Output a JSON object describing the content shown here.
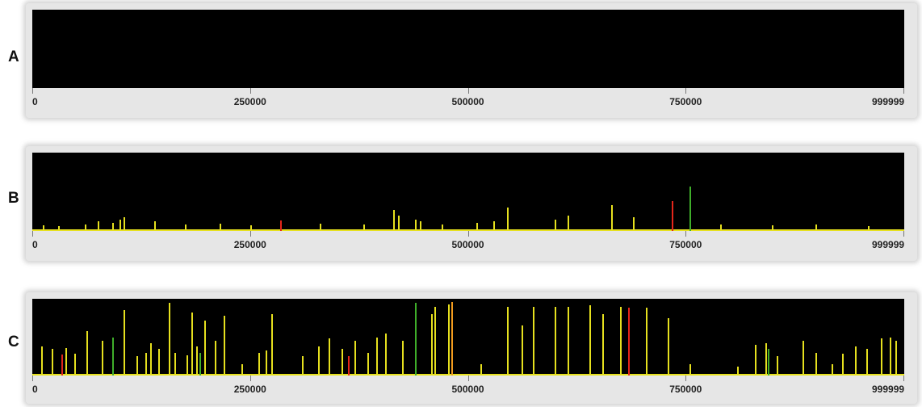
{
  "chart_data": [
    {
      "type": "bar",
      "panel_label": "A",
      "x_ticks": [
        "0",
        "250000",
        "500000",
        "750000",
        "999999"
      ],
      "xlim": [
        0,
        999999
      ],
      "ylim": [
        0,
        100
      ],
      "colors": {
        "background": "#000000",
        "low": "#e6e01e",
        "mid": "#f29b1e",
        "high": "#e5261a",
        "green": "#3fae2a"
      },
      "spikes": []
    },
    {
      "type": "bar",
      "panel_label": "B",
      "x_ticks": [
        "0",
        "250000",
        "500000",
        "750000",
        "999999"
      ],
      "xlim": [
        0,
        999999
      ],
      "ylim": [
        0,
        100
      ],
      "colors": {
        "background": "#000000",
        "low": "#e6e01e",
        "mid": "#f29b1e",
        "high": "#e5261a",
        "green": "#3fae2a"
      },
      "spikes": [
        {
          "x": 12000,
          "y": 7,
          "c": "low"
        },
        {
          "x": 30000,
          "y": 6,
          "c": "low"
        },
        {
          "x": 60000,
          "y": 8,
          "c": "low"
        },
        {
          "x": 75000,
          "y": 12,
          "c": "low"
        },
        {
          "x": 92000,
          "y": 10,
          "c": "low"
        },
        {
          "x": 100000,
          "y": 14,
          "c": "low"
        },
        {
          "x": 105000,
          "y": 18,
          "c": "low"
        },
        {
          "x": 140000,
          "y": 12,
          "c": "low"
        },
        {
          "x": 175000,
          "y": 8,
          "c": "low"
        },
        {
          "x": 215000,
          "y": 9,
          "c": "low"
        },
        {
          "x": 250000,
          "y": 7,
          "c": "low"
        },
        {
          "x": 285000,
          "y": 13,
          "c": "high"
        },
        {
          "x": 330000,
          "y": 9,
          "c": "low"
        },
        {
          "x": 380000,
          "y": 8,
          "c": "low"
        },
        {
          "x": 415000,
          "y": 27,
          "c": "low"
        },
        {
          "x": 420000,
          "y": 20,
          "c": "low"
        },
        {
          "x": 440000,
          "y": 14,
          "c": "low"
        },
        {
          "x": 445000,
          "y": 12,
          "c": "low"
        },
        {
          "x": 470000,
          "y": 8,
          "c": "low"
        },
        {
          "x": 510000,
          "y": 10,
          "c": "low"
        },
        {
          "x": 530000,
          "y": 12,
          "c": "low"
        },
        {
          "x": 545000,
          "y": 30,
          "c": "low"
        },
        {
          "x": 600000,
          "y": 14,
          "c": "low"
        },
        {
          "x": 615000,
          "y": 20,
          "c": "low"
        },
        {
          "x": 665000,
          "y": 33,
          "c": "low"
        },
        {
          "x": 690000,
          "y": 18,
          "c": "low"
        },
        {
          "x": 735000,
          "y": 38,
          "c": "high"
        },
        {
          "x": 755000,
          "y": 57,
          "c": "green"
        },
        {
          "x": 790000,
          "y": 8,
          "c": "low"
        },
        {
          "x": 850000,
          "y": 7,
          "c": "low"
        },
        {
          "x": 900000,
          "y": 8,
          "c": "low"
        },
        {
          "x": 960000,
          "y": 6,
          "c": "low"
        }
      ]
    },
    {
      "type": "bar",
      "panel_label": "C",
      "x_ticks": [
        "0",
        "250000",
        "500000",
        "750000",
        "999999"
      ],
      "xlim": [
        0,
        999999
      ],
      "ylim": [
        0,
        100
      ],
      "colors": {
        "background": "#000000",
        "low": "#e6e01e",
        "mid": "#f29b1e",
        "high": "#e5261a",
        "green": "#3fae2a"
      },
      "spikes": [
        {
          "x": 10000,
          "y": 38,
          "c": "low"
        },
        {
          "x": 22000,
          "y": 35,
          "c": "low"
        },
        {
          "x": 33000,
          "y": 27,
          "c": "high"
        },
        {
          "x": 38000,
          "y": 36,
          "c": "low"
        },
        {
          "x": 48000,
          "y": 28,
          "c": "low"
        },
        {
          "x": 62000,
          "y": 58,
          "c": "low"
        },
        {
          "x": 80000,
          "y": 45,
          "c": "low"
        },
        {
          "x": 92000,
          "y": 50,
          "c": "green"
        },
        {
          "x": 105000,
          "y": 85,
          "c": "low"
        },
        {
          "x": 120000,
          "y": 25,
          "c": "low"
        },
        {
          "x": 130000,
          "y": 30,
          "c": "low"
        },
        {
          "x": 135000,
          "y": 42,
          "c": "low"
        },
        {
          "x": 145000,
          "y": 35,
          "c": "low"
        },
        {
          "x": 157000,
          "y": 95,
          "c": "low"
        },
        {
          "x": 163000,
          "y": 30,
          "c": "low"
        },
        {
          "x": 177000,
          "y": 26,
          "c": "low"
        },
        {
          "x": 183000,
          "y": 82,
          "c": "low"
        },
        {
          "x": 188000,
          "y": 38,
          "c": "low"
        },
        {
          "x": 192000,
          "y": 30,
          "c": "green"
        },
        {
          "x": 198000,
          "y": 72,
          "c": "low"
        },
        {
          "x": 210000,
          "y": 45,
          "c": "low"
        },
        {
          "x": 220000,
          "y": 78,
          "c": "low"
        },
        {
          "x": 240000,
          "y": 15,
          "c": "low"
        },
        {
          "x": 260000,
          "y": 30,
          "c": "low"
        },
        {
          "x": 268000,
          "y": 33,
          "c": "low"
        },
        {
          "x": 275000,
          "y": 80,
          "c": "low"
        },
        {
          "x": 310000,
          "y": 25,
          "c": "low"
        },
        {
          "x": 328000,
          "y": 38,
          "c": "low"
        },
        {
          "x": 340000,
          "y": 48,
          "c": "low"
        },
        {
          "x": 355000,
          "y": 35,
          "c": "low"
        },
        {
          "x": 363000,
          "y": 25,
          "c": "high"
        },
        {
          "x": 370000,
          "y": 45,
          "c": "low"
        },
        {
          "x": 385000,
          "y": 30,
          "c": "low"
        },
        {
          "x": 395000,
          "y": 50,
          "c": "low"
        },
        {
          "x": 405000,
          "y": 55,
          "c": "low"
        },
        {
          "x": 425000,
          "y": 45,
          "c": "low"
        },
        {
          "x": 440000,
          "y": 95,
          "c": "green"
        },
        {
          "x": 458000,
          "y": 80,
          "c": "low"
        },
        {
          "x": 462000,
          "y": 90,
          "c": "low"
        },
        {
          "x": 478000,
          "y": 93,
          "c": "low"
        },
        {
          "x": 481000,
          "y": 96,
          "c": "mid"
        },
        {
          "x": 515000,
          "y": 15,
          "c": "low"
        },
        {
          "x": 545000,
          "y": 90,
          "c": "low"
        },
        {
          "x": 562000,
          "y": 65,
          "c": "low"
        },
        {
          "x": 575000,
          "y": 90,
          "c": "low"
        },
        {
          "x": 600000,
          "y": 90,
          "c": "low"
        },
        {
          "x": 615000,
          "y": 90,
          "c": "low"
        },
        {
          "x": 640000,
          "y": 92,
          "c": "low"
        },
        {
          "x": 655000,
          "y": 80,
          "c": "low"
        },
        {
          "x": 675000,
          "y": 90,
          "c": "low"
        },
        {
          "x": 685000,
          "y": 88,
          "c": "high"
        },
        {
          "x": 705000,
          "y": 88,
          "c": "low"
        },
        {
          "x": 730000,
          "y": 75,
          "c": "low"
        },
        {
          "x": 755000,
          "y": 15,
          "c": "low"
        },
        {
          "x": 810000,
          "y": 12,
          "c": "low"
        },
        {
          "x": 830000,
          "y": 40,
          "c": "low"
        },
        {
          "x": 842000,
          "y": 42,
          "c": "low"
        },
        {
          "x": 845000,
          "y": 35,
          "c": "green"
        },
        {
          "x": 855000,
          "y": 25,
          "c": "low"
        },
        {
          "x": 885000,
          "y": 45,
          "c": "low"
        },
        {
          "x": 900000,
          "y": 30,
          "c": "low"
        },
        {
          "x": 918000,
          "y": 15,
          "c": "low"
        },
        {
          "x": 930000,
          "y": 28,
          "c": "low"
        },
        {
          "x": 945000,
          "y": 38,
          "c": "low"
        },
        {
          "x": 958000,
          "y": 35,
          "c": "low"
        },
        {
          "x": 975000,
          "y": 48,
          "c": "low"
        },
        {
          "x": 985000,
          "y": 50,
          "c": "low"
        },
        {
          "x": 992000,
          "y": 45,
          "c": "low"
        }
      ]
    }
  ]
}
